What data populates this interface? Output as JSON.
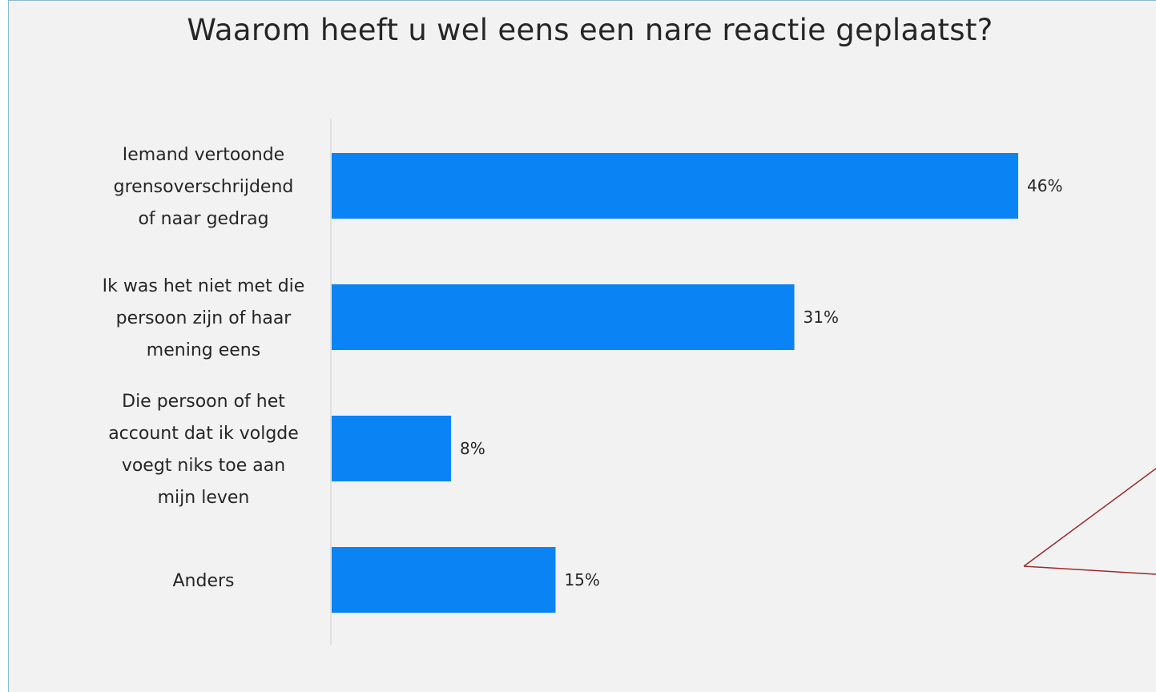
{
  "chart_data": {
    "type": "bar",
    "orientation": "horizontal",
    "title": "Waarom heeft u wel eens een nare reactie geplaatst?",
    "categories": [
      [
        "Iemand vertoonde",
        "grensoverschrijdend",
        "of naar gedrag"
      ],
      [
        "Ik was het niet met die",
        "persoon zijn of haar",
        "mening eens"
      ],
      [
        "Die persoon of het",
        "account dat ik volgde",
        "voegt niks toe aan",
        "mijn leven"
      ],
      [
        "Anders"
      ]
    ],
    "values": [
      46,
      31,
      8,
      15
    ],
    "data_labels": [
      "46%",
      "31%",
      "8%",
      "15%"
    ],
    "unit": "%",
    "xlim": [
      0,
      46
    ],
    "grid": false,
    "legend": "none",
    "colors": {
      "bar": "#0a84f5",
      "background": "#f2f2f2",
      "axis": "#d9d9d9",
      "callout_line": "#9b2a2a"
    }
  }
}
